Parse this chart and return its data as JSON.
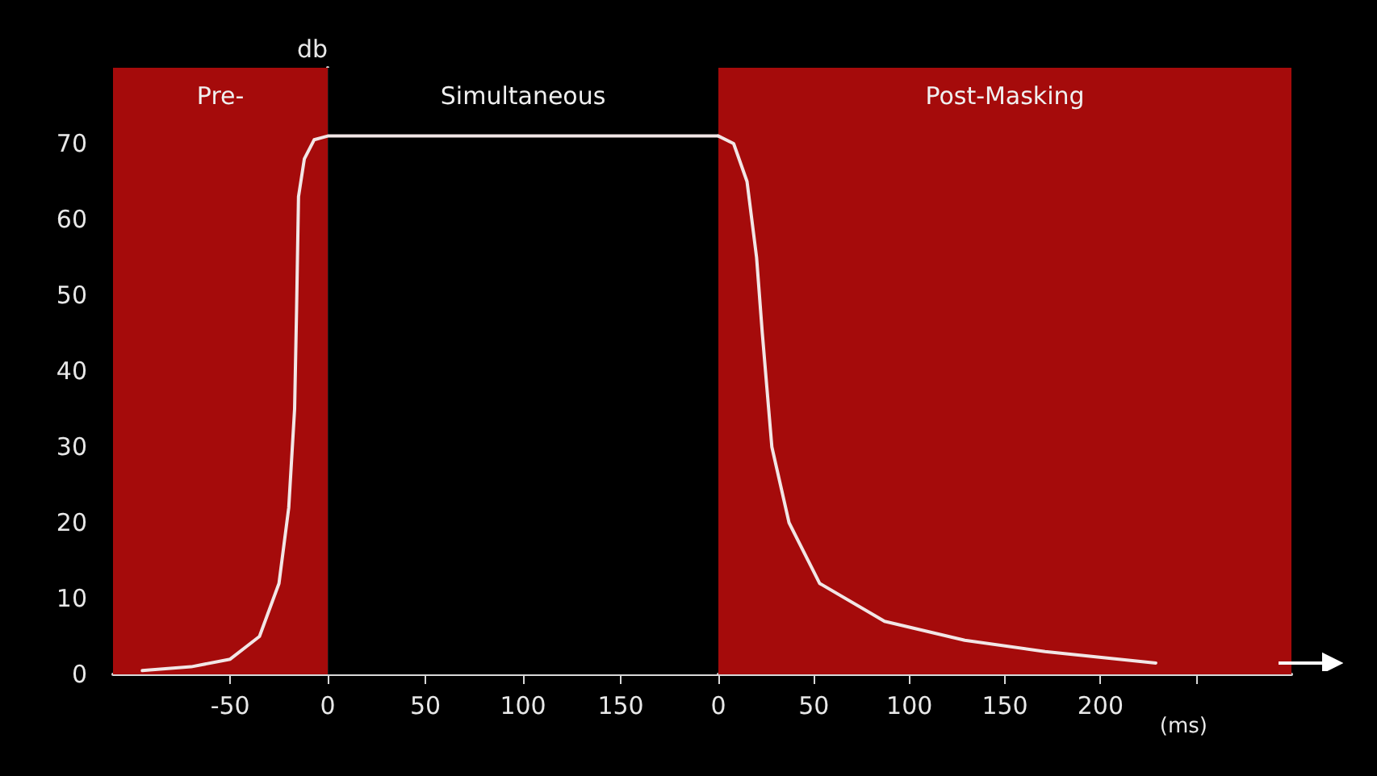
{
  "chart_data": [
    {
      "type": "line",
      "ylabel": "db",
      "x": [
        -95,
        -70,
        -50,
        -35,
        -25,
        -20,
        -17,
        -16,
        -15,
        -12,
        -7,
        0,
        200
      ],
      "values": [
        0.5,
        1,
        2,
        5,
        12,
        22,
        35,
        48,
        63,
        68,
        70.5,
        71,
        71
      ],
      "color": "#f2e6e6",
      "marker": "none",
      "line_style": "solid",
      "xlim": [
        -110,
        200
      ],
      "xticks": [
        -50,
        0,
        50,
        100,
        150
      ],
      "ylim": [
        0,
        80
      ],
      "yticks": [
        0,
        10,
        20,
        30,
        40,
        50,
        60,
        70
      ],
      "bands": [
        {
          "axis": "x",
          "from": -110,
          "to": 0,
          "label": "Pre-",
          "color": "#a50b0b"
        },
        {
          "axis": "x",
          "from": 0,
          "to": 200,
          "label": "Simultaneous",
          "color": "#000000"
        }
      ]
    },
    {
      "type": "line",
      "xlabel": "(ms)",
      "x": [
        0,
        8,
        15,
        20,
        23,
        28,
        37,
        53,
        87,
        129,
        171,
        229
      ],
      "values": [
        71,
        70,
        65,
        55,
        45,
        30,
        20,
        12,
        7,
        4.5,
        3,
        1.5
      ],
      "color": "#f2e6e6",
      "marker": "none",
      "line_style": "solid",
      "tick_labels": "x",
      "xlim": [
        0,
        300
      ],
      "xticks": [
        0,
        50,
        100,
        150,
        200,
        {
          "value": 250,
          "label": null
        }
      ],
      "ylim": [
        0,
        80
      ],
      "yticks": [
        0,
        10,
        20,
        30,
        40,
        50,
        60,
        70
      ],
      "bands": [
        {
          "axis": "x",
          "from": 0,
          "to": 300,
          "label": "Post-Masking",
          "color": "#a50b0b"
        }
      ]
    }
  ]
}
